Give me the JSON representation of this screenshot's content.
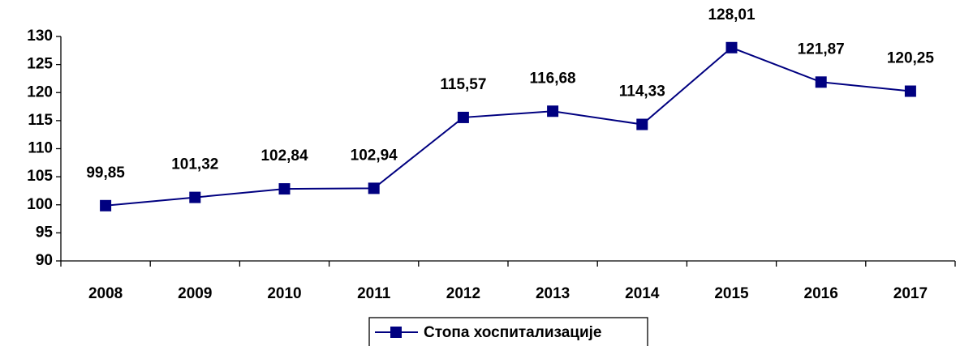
{
  "chart_data": {
    "type": "line",
    "categories": [
      "2008",
      "2009",
      "2010",
      "2011",
      "2012",
      "2013",
      "2014",
      "2015",
      "2016",
      "2017"
    ],
    "series": [
      {
        "name": "Стопа хоспитализације",
        "color": "#000080",
        "values": [
          99.85,
          101.32,
          102.84,
          102.94,
          115.57,
          116.68,
          114.33,
          128.01,
          121.87,
          120.25
        ],
        "value_labels": [
          "99,85",
          "101,32",
          "102,84",
          "102,94",
          "115,57",
          "116,68",
          "114,33",
          "128,01",
          "121,87",
          "120,25"
        ]
      }
    ],
    "ylim": [
      90,
      130
    ],
    "yticks": [
      90,
      95,
      100,
      105,
      110,
      115,
      120,
      125,
      130
    ],
    "grid": false,
    "legend": "bottom"
  }
}
